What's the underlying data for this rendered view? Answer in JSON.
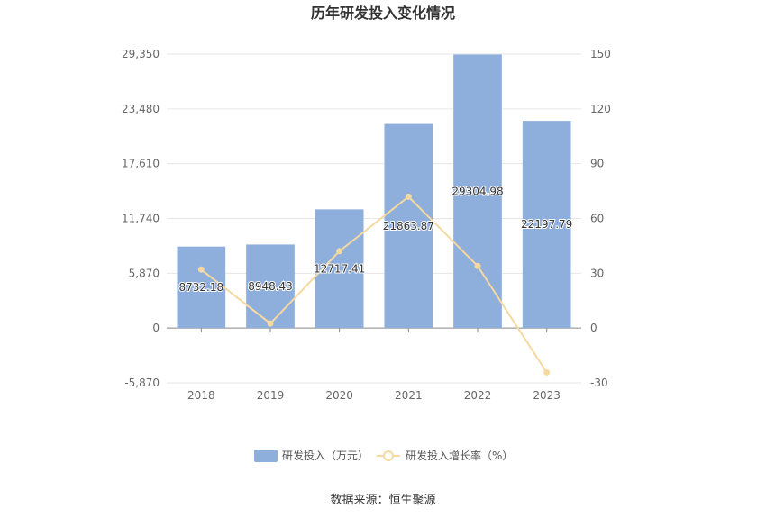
{
  "chart_data": {
    "type": "bar",
    "title": "历年研发投入变化情况",
    "categories": [
      "2018",
      "2019",
      "2020",
      "2021",
      "2022",
      "2023"
    ],
    "series": [
      {
        "name": "研发投入（万元）",
        "type": "bar",
        "axis": "left",
        "values": [
          8732.18,
          8948.43,
          12717.41,
          21863.87,
          29304.98,
          22197.79
        ],
        "labels": [
          "8732.18",
          "8948.43",
          "12717.41",
          "21863.87",
          "29304.98",
          "22197.79"
        ],
        "color": "#8eaedb"
      },
      {
        "name": "研发投入增长率（%）",
        "type": "line",
        "axis": "right",
        "values": [
          32,
          2.5,
          42.1,
          71.9,
          34,
          -24.3
        ],
        "color": "#f5d9a0"
      }
    ],
    "y_left": {
      "ylim": [
        -5870,
        29350
      ],
      "ticks": [
        -5870,
        0,
        5870,
        11740,
        17610,
        23480,
        29350
      ],
      "tick_labels": [
        "-5,870",
        "0",
        "5,870",
        "11,740",
        "17,610",
        "23,480",
        "29,350"
      ]
    },
    "y_right": {
      "ylim": [
        -30,
        150
      ],
      "ticks": [
        -30,
        0,
        30,
        60,
        90,
        120,
        150
      ],
      "tick_labels": [
        "-30",
        "0",
        "30",
        "60",
        "90",
        "120",
        "150"
      ]
    },
    "grid": true,
    "legend": "bottom-center"
  },
  "footer": {
    "source": "数据来源：恒生聚源"
  }
}
